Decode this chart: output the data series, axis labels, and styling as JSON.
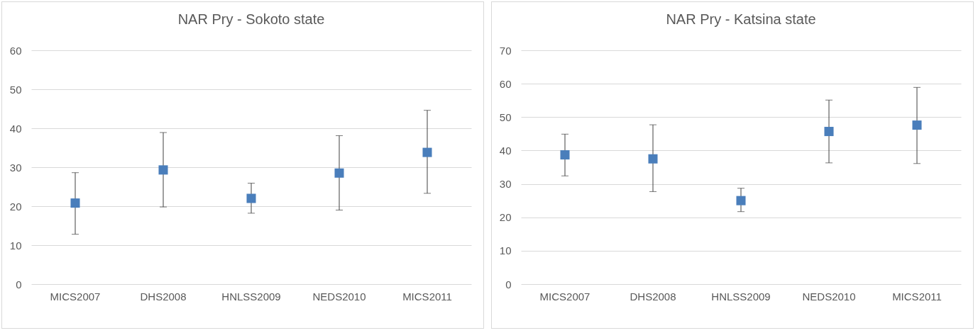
{
  "chart_data": [
    {
      "type": "scatter",
      "title": "NAR Pry - Sokoto state",
      "categories": [
        "MICS2007",
        "DHS2008",
        "HNLSS2009",
        "NEDS2010",
        "MICS2011"
      ],
      "values": [
        20.8,
        29.3,
        22,
        28.5,
        33.8
      ],
      "errors": [
        [
          12.8,
          28.6
        ],
        [
          19.8,
          38.9
        ],
        [
          18.2,
          25.9
        ],
        [
          19,
          38.1
        ],
        [
          23.3,
          44.6
        ]
      ],
      "color": "#4a7ebb",
      "ylim": [
        0,
        60
      ],
      "yticks": [
        0,
        10,
        20,
        30,
        40,
        50,
        60
      ],
      "grid": "y",
      "marker": "square"
    },
    {
      "type": "scatter",
      "title": "NAR Pry - Katsina state",
      "categories": [
        "MICS2007",
        "DHS2008",
        "HNLSS2009",
        "NEDS2010",
        "MICS2011"
      ],
      "values": [
        38.7,
        37.5,
        25,
        45.7,
        47.6
      ],
      "errors": [
        [
          32.4,
          44.9
        ],
        [
          27.7,
          47.7
        ],
        [
          21.7,
          28.7
        ],
        [
          36.3,
          55.1
        ],
        [
          36.1,
          58.9
        ]
      ],
      "color": "#4a7ebb",
      "ylim": [
        0,
        70
      ],
      "yticks": [
        0,
        10,
        20,
        30,
        40,
        50,
        60,
        70
      ],
      "grid": "y",
      "marker": "square"
    }
  ]
}
